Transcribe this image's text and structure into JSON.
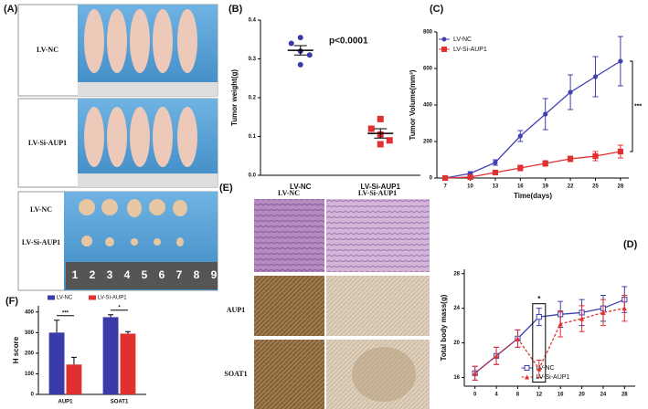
{
  "panel_labels": [
    "(A)",
    "(B)",
    "(C)",
    "(D)",
    "(E)",
    "(F)"
  ],
  "photo_A": {
    "mouse_groups": [
      "LV-NC",
      "LV-Si-AUP1"
    ],
    "tumor_groups": [
      "LV-NC",
      "LV-Si-AUP1"
    ],
    "ruler": [
      1,
      2,
      3,
      4,
      5,
      6,
      7,
      8,
      9
    ]
  },
  "photo_E": {
    "columns": [
      "LV-NC",
      "LV-Si-AUP1"
    ],
    "rows": [
      "AUP1",
      "SOAT1"
    ]
  },
  "chart_data": [
    {
      "type": "dotplot",
      "ylabel": "Tumor weight(g)",
      "annotation": "p<0.0001",
      "categories": [
        "LV-NC",
        "LV-Si-AUP1"
      ],
      "groups": [
        {
          "color": "#3a3aa8",
          "values": [
            0.355,
            0.34,
            0.32,
            0.31,
            0.285
          ],
          "mean": 0.322,
          "error": 0.012
        },
        {
          "color": "#e03030",
          "values": [
            0.145,
            0.12,
            0.105,
            0.09,
            0.08
          ],
          "mean": 0.108,
          "error": 0.012
        }
      ],
      "ylim": [
        0,
        0.4
      ],
      "yticks": [
        {
          "value": 0,
          "label": "0.0"
        },
        0.1,
        0.2,
        0.3,
        0.4
      ]
    },
    {
      "type": "line",
      "xlabel": "Time(days)",
      "ylabel": "Tumor Volume(mm³)",
      "annotation": "***",
      "legend": "upper left",
      "x": [
        7,
        10,
        13,
        16,
        19,
        22,
        25,
        28
      ],
      "xlim": [
        6,
        29
      ],
      "xticks": [
        7,
        10,
        13,
        16,
        19,
        22,
        25,
        28
      ],
      "ylim": [
        0,
        800
      ],
      "yticks": [
        0,
        200,
        400,
        600,
        800
      ],
      "series": [
        {
          "name": "LV-NC",
          "color": "#4040b0",
          "marker": "circle",
          "dashed": false,
          "values": [
            0,
            25,
            85,
            230,
            350,
            470,
            555,
            640
          ],
          "errors": [
            0,
            10,
            15,
            30,
            85,
            95,
            110,
            135
          ]
        },
        {
          "name": "LV-Si-AUP1",
          "color": "#e03030",
          "marker": "square",
          "dashed": false,
          "values": [
            0,
            5,
            30,
            55,
            80,
            105,
            120,
            145
          ],
          "errors": [
            0,
            5,
            10,
            15,
            15,
            15,
            25,
            35
          ]
        }
      ]
    },
    {
      "type": "line",
      "ylabel": "Total body mass(g)",
      "annotation": "*",
      "legend": "lower center",
      "x": [
        0,
        4,
        8,
        12,
        16,
        20,
        24,
        28
      ],
      "xlim": [
        -2,
        30
      ],
      "xticks": [
        0,
        4,
        8,
        12,
        16,
        20,
        24,
        28
      ],
      "ylim": [
        15,
        28.5
      ],
      "yticks": [
        16,
        20,
        24,
        28
      ],
      "series": [
        {
          "name": "LV-NC",
          "color": "#4040b0",
          "marker": "square-open",
          "dashed": false,
          "values": [
            16.5,
            18.5,
            20.5,
            23,
            23.3,
            23.5,
            24,
            25
          ],
          "errors": [
            0.8,
            1,
            1,
            1,
            1.5,
            1.5,
            1.5,
            1.5
          ]
        },
        {
          "name": "LV-Si-AUP1",
          "color": "#e03030",
          "marker": "triangle",
          "dashed": true,
          "values": [
            16.5,
            18.5,
            20.5,
            17,
            22.2,
            22.8,
            23.5,
            24
          ],
          "errors": [
            0.8,
            1,
            1,
            1,
            1.5,
            1.5,
            1.5,
            1.5
          ]
        }
      ]
    },
    {
      "type": "bar",
      "ylabel": "H score",
      "legend": "top",
      "categories": [
        "AUP1",
        "SOAT1"
      ],
      "annotations": [
        "***",
        "*"
      ],
      "ylim": [
        0,
        430
      ],
      "yticks": [
        0,
        100,
        200,
        300,
        400
      ],
      "series": [
        {
          "name": "LV-NC",
          "color": "#3a3aa8",
          "values": [
            300,
            375
          ],
          "errors": [
            60,
            12
          ]
        },
        {
          "name": "LV-Si-AUP1",
          "color": "#e03030",
          "values": [
            145,
            295
          ],
          "errors": [
            35,
            10
          ]
        }
      ]
    }
  ]
}
